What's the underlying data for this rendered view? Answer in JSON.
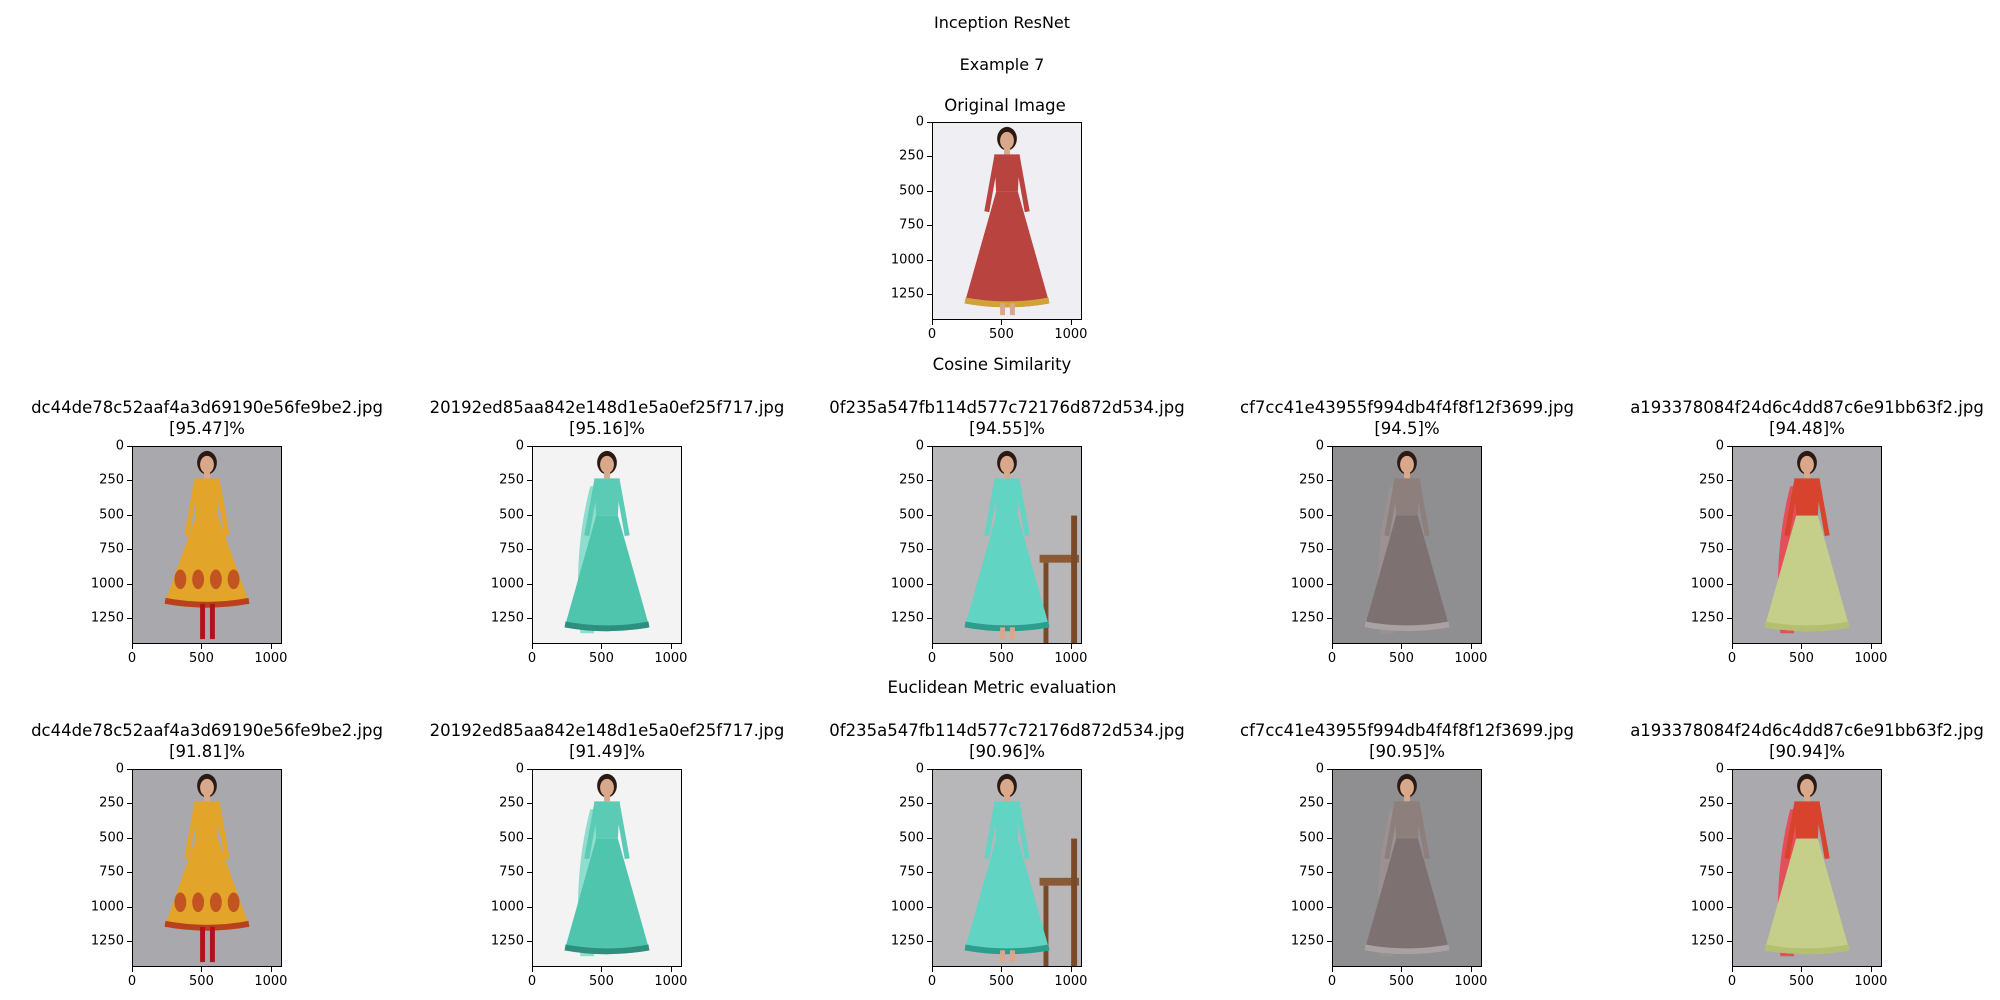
{
  "figure": {
    "title": "Inception ResNet",
    "subtitle": "Example 7",
    "original_label": "Original Image",
    "cosine_label": "Cosine Similarity",
    "euclidean_label": "Euclidean Metric evaluation"
  },
  "axes": {
    "y_ticks": [
      "0",
      "250",
      "500",
      "750",
      "1000",
      "1250"
    ],
    "x_ticks": [
      "0",
      "500",
      "1000"
    ]
  },
  "original": {
    "image": "red-anarkali-dress",
    "bg": "#efeef3"
  },
  "cosine": [
    {
      "filename": "dc44de78c52aaf4a3d69190e56fe9be2.jpg",
      "score": "[95.47]%",
      "image": "yellow-anarkali-kurta",
      "bg": "#a9a8ad"
    },
    {
      "filename": "20192ed85aa842e148d1e5a0ef25f717.jpg",
      "score": "[95.16]%",
      "image": "turquoise-lehenga",
      "bg": "#f3f3f3"
    },
    {
      "filename": "0f235a547fb114d577c72176d872d534.jpg",
      "score": "[94.55]%",
      "image": "mint-anarkali-chair",
      "bg": "#b7b6b9"
    },
    {
      "filename": "cf7cc41e43955f994db4f4f8f12f3699.jpg",
      "score": "[94.5]%",
      "image": "grey-sharara-dupatta",
      "bg": "#8f8f92"
    },
    {
      "filename": "a193378084f24d6c4dd87c6e91bb63f2.jpg",
      "score": "[94.48]%",
      "image": "red-green-lehenga",
      "bg": "#aaa9ae"
    }
  ],
  "euclidean": [
    {
      "filename": "dc44de78c52aaf4a3d69190e56fe9be2.jpg",
      "score": "[91.81]%",
      "image": "yellow-anarkali-kurta",
      "bg": "#a9a8ad"
    },
    {
      "filename": "20192ed85aa842e148d1e5a0ef25f717.jpg",
      "score": "[91.49]%",
      "image": "turquoise-lehenga",
      "bg": "#f3f3f3"
    },
    {
      "filename": "0f235a547fb114d577c72176d872d534.jpg",
      "score": "[90.96]%",
      "image": "mint-anarkali-chair",
      "bg": "#b7b6b9"
    },
    {
      "filename": "cf7cc41e43955f994db4f4f8f12f3699.jpg",
      "score": "[90.95]%",
      "image": "grey-sharara-dupatta",
      "bg": "#8f8f92"
    },
    {
      "filename": "a193378084f24d6c4dd87c6e91bb63f2.jpg",
      "score": "[90.94]%",
      "image": "red-green-lehenga",
      "bg": "#aaa9ae"
    }
  ]
}
